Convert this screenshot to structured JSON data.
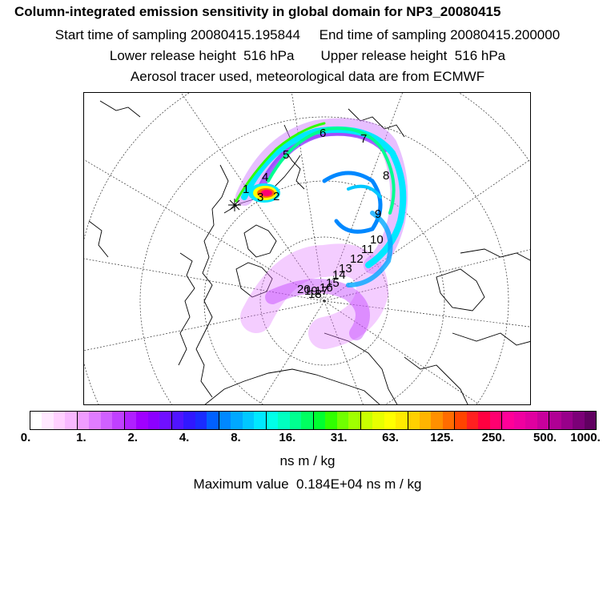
{
  "header": {
    "title": "Column-integrated emission sensitivity in global domain for NP3_20080415",
    "sampling": "Start time of sampling 20080415.195844     End time of sampling 20080415.200000",
    "release": "Lower release height  516 hPa       Upper release height  516 hPa",
    "source": "Aerosol tracer used, meteorological data are from ECMWF"
  },
  "colorbar": {
    "colors": [
      "#ffffff",
      "#ffe8ff",
      "#ffd0ff",
      "#f8b8ff",
      "#f09cff",
      "#e07cff",
      "#d060ff",
      "#c040ff",
      "#b020ff",
      "#a000ff",
      "#8c00ff",
      "#7010ff",
      "#5014ff",
      "#3018ff",
      "#1a2cff",
      "#0060ff",
      "#0088ff",
      "#00a8ff",
      "#00c8ff",
      "#00e8ff",
      "#00ffe8",
      "#00ffc0",
      "#00ff90",
      "#00ff60",
      "#00ff30",
      "#30ff00",
      "#70ff00",
      "#a0ff00",
      "#c8ff00",
      "#e8ff00",
      "#ffff00",
      "#ffea00",
      "#ffd000",
      "#ffb400",
      "#ff9000",
      "#ff6c00",
      "#ff4400",
      "#ff2020",
      "#ff0040",
      "#ff0070",
      "#ff0098",
      "#f000a0",
      "#e000a0",
      "#c8009c",
      "#b00094",
      "#98008a",
      "#7c0078",
      "#600060"
    ],
    "ticks": [
      "0.",
      "1.",
      "2.",
      "4.",
      "8.",
      "16.",
      "31.",
      "63.",
      "125.",
      "250.",
      "500.",
      "1000."
    ],
    "unit": "ns m / kg"
  },
  "maximum": "Maximum value  0.184E+04 ns m / kg",
  "map": {
    "day_labels": [
      "1",
      "2",
      "3",
      "4",
      "5",
      "6",
      "7",
      "8",
      "9",
      "10",
      "11",
      "12",
      "13",
      "14",
      "15",
      "16",
      "17",
      "18",
      "19",
      "20"
    ]
  }
}
